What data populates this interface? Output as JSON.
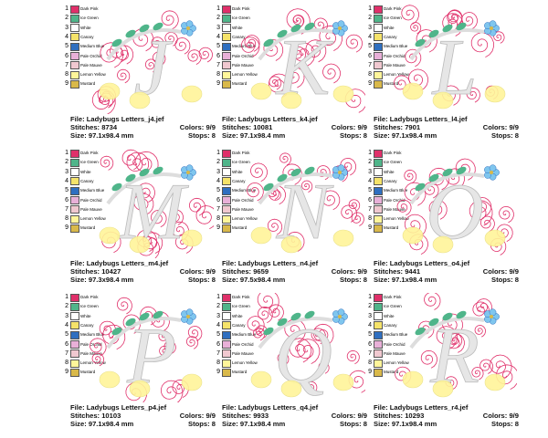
{
  "labels": {
    "file": "File:",
    "stitches": "Stitches:",
    "colors": "Colors:",
    "size": "Size:",
    "stops": "Stops:"
  },
  "palette": [
    {
      "number": 1,
      "name": "Dark Pink",
      "color": "#e0306a"
    },
    {
      "number": 2,
      "name": "Ice Green",
      "color": "#4fb58a"
    },
    {
      "number": 3,
      "name": "White",
      "color": "#ffffff"
    },
    {
      "number": 4,
      "name": "Canary",
      "color": "#f5e36a"
    },
    {
      "number": 5,
      "name": "Medium Blue",
      "color": "#2f6fc0"
    },
    {
      "number": 6,
      "name": "Pale Orchid",
      "color": "#e8b0d8"
    },
    {
      "number": 7,
      "name": "Pale Mauve",
      "color": "#f0c8d0"
    },
    {
      "number": 8,
      "name": "Lemon Yellow",
      "color": "#fff59a"
    },
    {
      "number": 9,
      "name": "Mustard",
      "color": "#d9b94a"
    }
  ],
  "cards": [
    {
      "letter": "J",
      "file": "Ladybugs Letters_j4.jef",
      "stitches": 8734,
      "colors": "9/9",
      "size": "97.1x98.4 mm",
      "stops": 8
    },
    {
      "letter": "K",
      "file": "Ladybugs Letters_k4.jef",
      "stitches": 10081,
      "colors": "9/9",
      "size": "97.1x98.4 mm",
      "stops": 8
    },
    {
      "letter": "L",
      "file": "Ladybugs Letters_l4.jef",
      "stitches": 7901,
      "colors": "9/9",
      "size": "97.1x98.4 mm",
      "stops": 8
    },
    {
      "letter": "M",
      "file": "Ladybugs Letters_m4.jef",
      "stitches": 10427,
      "colors": "9/9",
      "size": "97.3x98.4 mm",
      "stops": 8
    },
    {
      "letter": "N",
      "file": "Ladybugs Letters_n4.jef",
      "stitches": 9659,
      "colors": "9/9",
      "size": "97.5x98.4 mm",
      "stops": 8
    },
    {
      "letter": "O",
      "file": "Ladybugs Letters_o4.jef",
      "stitches": 9441,
      "colors": "9/9",
      "size": "97.1x98.4 mm",
      "stops": 8
    },
    {
      "letter": "P",
      "file": "Ladybugs Letters_p4.jef",
      "stitches": 10103,
      "colors": "9/9",
      "size": "97.1x98.4 mm",
      "stops": 8
    },
    {
      "letter": "Q",
      "file": "Ladybugs Letters_q4.jef",
      "stitches": 9933,
      "colors": "9/9",
      "size": "97.1x98.4 mm",
      "stops": 8
    },
    {
      "letter": "R",
      "file": "Ladybugs Letters_r4.jef",
      "stitches": 10293,
      "colors": "9/9",
      "size": "97.1x98.4 mm",
      "stops": 8
    }
  ]
}
